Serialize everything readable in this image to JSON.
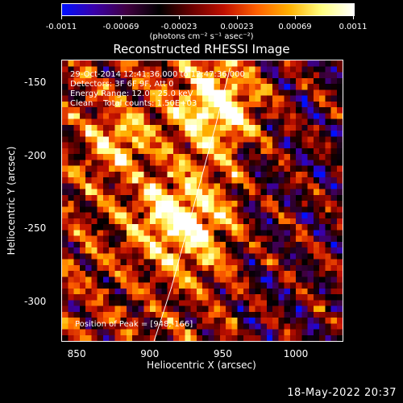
{
  "colorbar": {
    "ticks": [
      "-0.0011",
      "-0.00069",
      "-0.00023",
      "0.00023",
      "0.00069",
      "0.0011"
    ],
    "units": "(photons cm⁻² s⁻¹ asec⁻²)",
    "stops": [
      "#0010ff",
      "#3a00a8",
      "#400040",
      "#000000",
      "#6a0000",
      "#c01000",
      "#ff6000",
      "#ffb000",
      "#ffff80",
      "#ffffff"
    ]
  },
  "title": "Reconstructed RHESSI Image",
  "annotation": {
    "line1": "29-Oct-2014 12:41:36.000 to 12:47:36.000",
    "line2": "Detectors: 3F 6F 9F, Att 0",
    "line3": "Energy Range: 12.0 - 25.0 keV",
    "line4": "Clean    Total counts: 1.50E+03",
    "peak": "Position of Peak = [948,-166]"
  },
  "axes": {
    "xlabel": "Heliocentric X (arcsec)",
    "ylabel": "Heliocentric Y (arcsec)",
    "xticks": [
      "850",
      "900",
      "950",
      "1000"
    ],
    "yticks": [
      "-150",
      "-200",
      "-250",
      "-300"
    ]
  },
  "timestamp": "18-May-2022 20:37",
  "chart_data": {
    "type": "heatmap",
    "title": "Reconstructed RHESSI Image",
    "xlabel": "Heliocentric X (arcsec)",
    "ylabel": "Heliocentric Y (arcsec)",
    "xlim": [
      840,
      1032
    ],
    "ylim": [
      -327,
      -135
    ],
    "clim": [
      -0.0011,
      0.0011
    ],
    "peaks": [
      {
        "x": 948,
        "y": -166
      },
      {
        "x": 922,
        "y": -245
      },
      {
        "x": 880,
        "y": -190
      }
    ],
    "limb_curve": {
      "x": [
        955,
        945,
        930,
        915,
        903
      ],
      "y": [
        -140,
        -180,
        -235,
        -290,
        -327
      ]
    }
  }
}
